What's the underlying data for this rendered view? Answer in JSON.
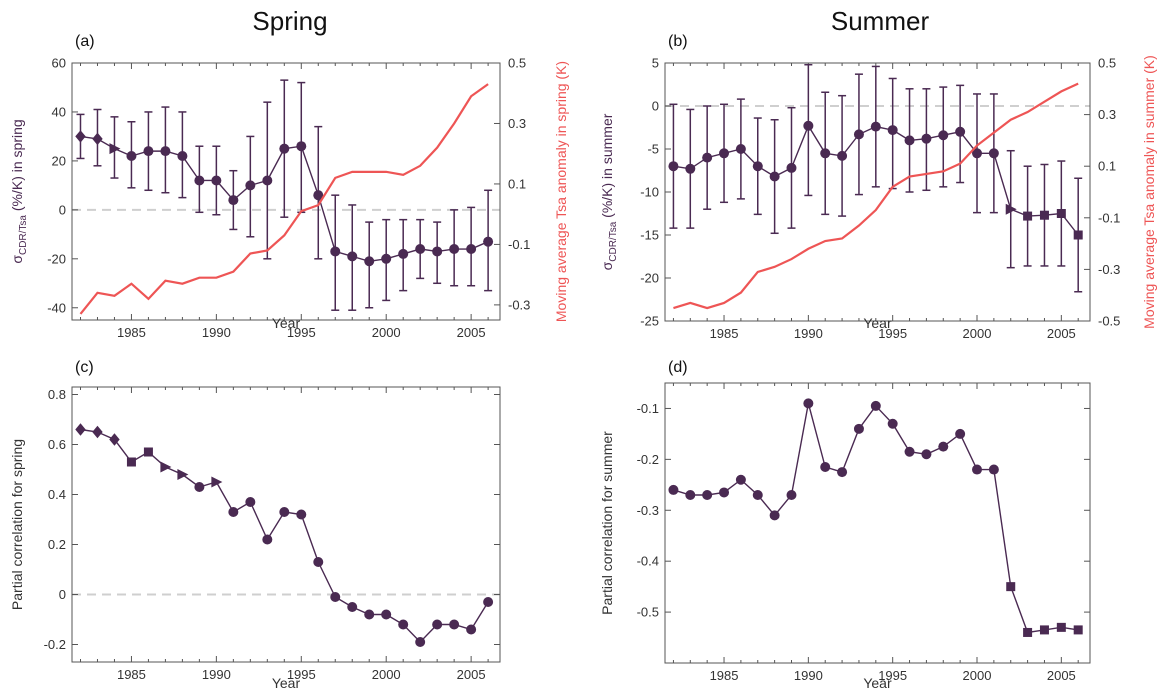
{
  "colors": {
    "purple": "#4a2a52",
    "red": "#ee5555",
    "frame": "#555555",
    "zero": "#cfcfcf"
  },
  "chart_data": [
    {
      "panel_label": "(a)",
      "title": "Spring",
      "type": "line",
      "xlabel": "Year",
      "ylabel_main": "σ",
      "ylabel_sub": "CDR/Tsa",
      "ylabel_rest": " (%/K) in spring",
      "y2label": "Moving average Tsa anomaly in spring (K)",
      "xlim": [
        1981.5,
        2006.7
      ],
      "ylim": [
        -45,
        60
      ],
      "y2lim": [
        -0.35,
        0.5
      ],
      "xticks": [
        1985,
        1990,
        1995,
        2000,
        2005
      ],
      "yticks": [
        -40,
        -20,
        0,
        20,
        40,
        60
      ],
      "y2ticks": [
        -0.3,
        -0.1,
        0.1,
        0.3,
        0.5
      ],
      "zero_line": 0,
      "x": [
        1982,
        1983,
        1984,
        1985,
        1986,
        1987,
        1988,
        1989,
        1990,
        1991,
        1992,
        1993,
        1994,
        1995,
        1996,
        1997,
        1998,
        1999,
        2000,
        2001,
        2002,
        2003,
        2004,
        2005,
        2006
      ],
      "markers": [
        "diamond",
        "diamond",
        "triangle",
        "circle",
        "circle",
        "circle",
        "circle",
        "circle",
        "circle",
        "circle",
        "circle",
        "circle",
        "circle",
        "circle",
        "circle",
        "circle",
        "circle",
        "circle",
        "circle",
        "circle",
        "circle",
        "circle",
        "circle",
        "circle",
        "circle"
      ],
      "series": [
        {
          "axis": "left",
          "values": [
            30,
            29,
            25,
            22,
            24,
            24,
            22,
            12,
            12,
            4,
            10,
            12,
            25,
            26,
            6,
            -17,
            -19,
            -21,
            -20,
            -18,
            -16,
            -17,
            -16,
            -16,
            -13
          ],
          "err_low": [
            21,
            18,
            13,
            9,
            8,
            7,
            5,
            -1,
            -2,
            -8,
            -11,
            -20,
            -3,
            -1,
            -20,
            -41,
            -41,
            -40,
            -37,
            -33,
            -28,
            -30,
            -31,
            -31,
            -33
          ],
          "err_high": [
            39,
            41,
            38,
            36,
            40,
            42,
            40,
            26,
            26,
            16,
            30,
            44,
            53,
            52,
            34,
            6,
            2,
            -5,
            -4,
            -4,
            -4,
            -5,
            0,
            1,
            8
          ]
        },
        {
          "axis": "right",
          "values": [
            -0.33,
            -0.26,
            -0.27,
            -0.23,
            -0.28,
            -0.22,
            -0.23,
            -0.21,
            -0.21,
            -0.19,
            -0.13,
            -0.12,
            -0.07,
            0.01,
            0.03,
            0.12,
            0.14,
            0.14,
            0.14,
            0.13,
            0.16,
            0.22,
            0.3,
            0.39,
            0.43
          ]
        }
      ]
    },
    {
      "panel_label": "(b)",
      "title": "Summer",
      "type": "line",
      "xlabel": "Year",
      "ylabel_main": "σ",
      "ylabel_sub": "CDR/Tsa",
      "ylabel_rest": " (%/K) in summer",
      "y2label": "Moving average Tsa anomaly in summer (K)",
      "xlim": [
        1981.5,
        2006.7
      ],
      "ylim": [
        -25,
        5
      ],
      "y2lim": [
        -0.5,
        0.5
      ],
      "xticks": [
        1985,
        1990,
        1995,
        2000,
        2005
      ],
      "yticks": [
        -25,
        -20,
        -15,
        -10,
        -5,
        0,
        5
      ],
      "y2ticks": [
        -0.5,
        -0.3,
        -0.1,
        0.1,
        0.3,
        0.5
      ],
      "zero_line": 0,
      "x": [
        1982,
        1983,
        1984,
        1985,
        1986,
        1987,
        1988,
        1989,
        1990,
        1991,
        1992,
        1993,
        1994,
        1995,
        1996,
        1997,
        1998,
        1999,
        2000,
        2001,
        2002,
        2003,
        2004,
        2005,
        2006
      ],
      "markers": [
        "circle",
        "circle",
        "circle",
        "circle",
        "circle",
        "circle",
        "circle",
        "circle",
        "circle",
        "circle",
        "circle",
        "circle",
        "circle",
        "circle",
        "circle",
        "circle",
        "circle",
        "circle",
        "circle",
        "circle",
        "triangle",
        "square",
        "square",
        "square",
        "square"
      ],
      "series": [
        {
          "axis": "left",
          "values": [
            -7,
            -7.3,
            -6,
            -5.5,
            -5,
            -7,
            -8.2,
            -7.2,
            -2.3,
            -5.5,
            -5.8,
            -3.3,
            -2.4,
            -2.8,
            -4,
            -3.8,
            -3.4,
            -3,
            -5.5,
            -5.5,
            -12,
            -12.8,
            -12.7,
            -12.5,
            -15
          ],
          "err_low": [
            -14.2,
            -14.2,
            -12,
            -11.2,
            -10.8,
            -12.6,
            -14.8,
            -14.2,
            -10.4,
            -12.6,
            -12.8,
            -10.3,
            -9.4,
            -9.6,
            -10,
            -9.8,
            -9.4,
            -8.9,
            -12.4,
            -12.4,
            -18.8,
            -18.6,
            -18.6,
            -18.6,
            -21.6
          ],
          "err_high": [
            0.2,
            -0.4,
            0,
            0.2,
            0.8,
            -1.4,
            -1.6,
            -0.2,
            4.8,
            1.6,
            1.2,
            3.7,
            4.6,
            3.2,
            2,
            2,
            2.2,
            2.4,
            1.4,
            1.4,
            -5.2,
            -7,
            -6.8,
            -6.4,
            -8.4
          ]
        },
        {
          "axis": "right",
          "values": [
            -0.45,
            -0.43,
            -0.45,
            -0.43,
            -0.39,
            -0.31,
            -0.29,
            -0.26,
            -0.22,
            -0.19,
            -0.18,
            -0.13,
            -0.07,
            0.02,
            0.06,
            0.07,
            0.08,
            0.11,
            0.18,
            0.23,
            0.28,
            0.31,
            0.35,
            0.39,
            0.42
          ]
        }
      ]
    },
    {
      "panel_label": "(c)",
      "type": "line",
      "xlabel": "Year",
      "ylabel": "Partial correlation for spring",
      "xlim": [
        1981.5,
        2006.7
      ],
      "ylim": [
        -0.27,
        0.83
      ],
      "xticks": [
        1985,
        1990,
        1995,
        2000,
        2005
      ],
      "yticks": [
        -0.2,
        0,
        0.2,
        0.4,
        0.6,
        0.8
      ],
      "zero_line": 0,
      "x": [
        1982,
        1983,
        1984,
        1985,
        1986,
        1987,
        1988,
        1989,
        1990,
        1991,
        1992,
        1993,
        1994,
        1995,
        1996,
        1997,
        1998,
        1999,
        2000,
        2001,
        2002,
        2003,
        2004,
        2005,
        2006
      ],
      "markers": [
        "diamond",
        "diamond",
        "diamond",
        "square",
        "square",
        "triangle",
        "triangle",
        "circle",
        "triangle",
        "circle",
        "circle",
        "circle",
        "circle",
        "circle",
        "circle",
        "circle",
        "circle",
        "circle",
        "circle",
        "circle",
        "circle",
        "circle",
        "circle",
        "circle",
        "circle"
      ],
      "series": [
        {
          "axis": "left",
          "values": [
            0.66,
            0.65,
            0.62,
            0.53,
            0.57,
            0.51,
            0.48,
            0.43,
            0.45,
            0.33,
            0.37,
            0.22,
            0.33,
            0.32,
            0.13,
            -0.01,
            -0.05,
            -0.08,
            -0.08,
            -0.12,
            -0.19,
            -0.12,
            -0.12,
            -0.14,
            -0.03
          ]
        }
      ]
    },
    {
      "panel_label": "(d)",
      "type": "line",
      "xlabel": "Year",
      "ylabel": "Partial correlation for summer",
      "xlim": [
        1981.5,
        2006.7
      ],
      "ylim": [
        -0.6,
        -0.05
      ],
      "xticks": [
        1985,
        1990,
        1995,
        2000,
        2005
      ],
      "yticks": [
        -0.5,
        -0.4,
        -0.3,
        -0.2,
        -0.1
      ],
      "x": [
        1982,
        1983,
        1984,
        1985,
        1986,
        1987,
        1988,
        1989,
        1990,
        1991,
        1992,
        1993,
        1994,
        1995,
        1996,
        1997,
        1998,
        1999,
        2000,
        2001,
        2002,
        2003,
        2004,
        2005,
        2006
      ],
      "markers": [
        "circle",
        "circle",
        "circle",
        "circle",
        "circle",
        "circle",
        "circle",
        "circle",
        "circle",
        "circle",
        "circle",
        "circle",
        "circle",
        "circle",
        "circle",
        "circle",
        "circle",
        "circle",
        "circle",
        "circle",
        "square",
        "square",
        "square",
        "square",
        "square"
      ],
      "series": [
        {
          "axis": "left",
          "values": [
            -0.26,
            -0.27,
            -0.27,
            -0.265,
            -0.24,
            -0.27,
            -0.31,
            -0.27,
            -0.09,
            -0.215,
            -0.225,
            -0.14,
            -0.095,
            -0.13,
            -0.185,
            -0.19,
            -0.175,
            -0.15,
            -0.22,
            -0.22,
            -0.45,
            -0.54,
            -0.535,
            -0.53,
            -0.535
          ]
        }
      ]
    }
  ]
}
